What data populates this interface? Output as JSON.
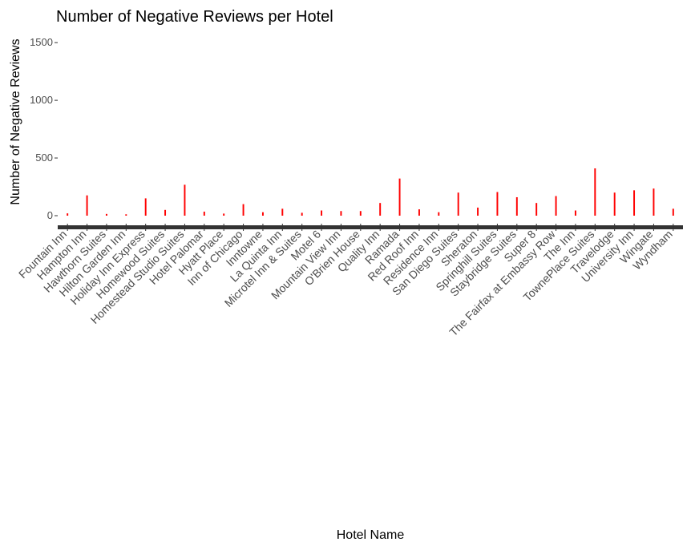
{
  "chart_data": {
    "type": "bar",
    "title": "Number of Negative Reviews per Hotel",
    "xlabel": "Hotel Name",
    "ylabel": "Number of Negative Reviews",
    "ylim": [
      0,
      1800
    ],
    "yticks": [
      0,
      500,
      1000,
      1500
    ],
    "grid": false,
    "legend": "none",
    "bar_color": "#ff0000",
    "categories": [
      "Fountain Inn",
      "Hampton Inn",
      "Hawthorn Suites",
      "Hilton Garden Inn",
      "Holiday Inn Express",
      "Homewood Suites",
      "Homestead Studio Suites",
      "Hotel Palomar",
      "Hyatt Place",
      "Inn of Chicago",
      "Inntowne",
      "La Quinta Inn",
      "Microtel Inn & Suites",
      "Motel 6",
      "Mountain View Inn",
      "O'Brien House",
      "Quality Inn",
      "Ramada",
      "Red Roof Inn",
      "Residence Inn",
      "San Diego Suites",
      "Sheraton",
      "Springhill Suites",
      "Staybridge Suites",
      "Super 8",
      "The Fairfax at Embassy Row",
      "The Inn",
      "TownePlace Suites",
      "Travelodge",
      "University Inn",
      "Wingate",
      "Wyndham"
    ],
    "values": [
      20,
      176,
      15,
      12,
      150,
      50,
      268,
      35,
      18,
      100,
      30,
      60,
      25,
      45,
      40,
      40,
      110,
      322,
      55,
      30,
      200,
      70,
      205,
      160,
      110,
      170,
      45,
      410,
      200,
      220,
      235,
      60
    ]
  }
}
